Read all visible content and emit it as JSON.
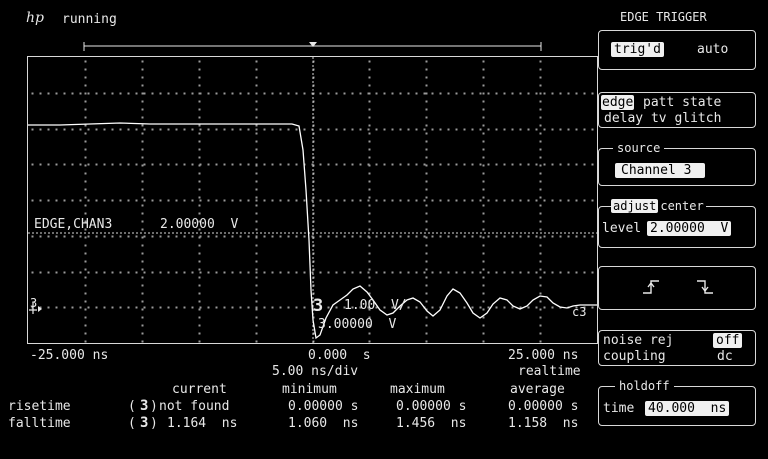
{
  "header": {
    "logo": "hp",
    "status": "running"
  },
  "scope": {
    "ref_label_left": "EDGE,CHAN3",
    "ref_label_value": "2.00000  V",
    "marker_channel": "3",
    "marker_volts_per_div": "1.00  V/",
    "marker_offset": "3.00000  V",
    "trace_label": "c3",
    "ch_ground_marker": "3",
    "time_left": "-25.000 ns",
    "time_center": "0.000  s",
    "time_right": "25.000 ns",
    "time_per_div": "5.00 ns/div",
    "acq_mode": "realtime"
  },
  "measurements": {
    "headers": [
      "current",
      "minimum",
      "maximum",
      "average"
    ],
    "rows": [
      {
        "name": "risetime",
        "channel": "3",
        "current": "not found",
        "minimum": "0.00000 s",
        "maximum": "0.00000 s",
        "average": "0.00000 s"
      },
      {
        "name": "falltime",
        "channel": "3",
        "current": "1.164  ns",
        "minimum": "1.060  ns",
        "maximum": "1.456  ns",
        "average": "1.158  ns"
      }
    ]
  },
  "softkeys": {
    "title": "EDGE TRIGGER",
    "mode_selected": "trig'd",
    "mode_other": "auto",
    "type_selected": "edge",
    "type_line1_rest": "patt state",
    "type_line2": "delay tv glitch",
    "source_legend": "source",
    "source_value": "Channel 3",
    "adjust_selected": "adjust",
    "adjust_other": "center",
    "level_label": "level",
    "level_value": "2.00000  V",
    "slope_rising_icon": "rising-edge-icon",
    "slope_falling_icon": "falling-edge-icon",
    "noise_rej_label": "noise rej",
    "noise_rej_value": "off",
    "coupling_label": "coupling",
    "coupling_value": "dc",
    "holdoff_legend": "holdoff",
    "holdoff_label": "time",
    "holdoff_value": "40.000  ns"
  }
}
